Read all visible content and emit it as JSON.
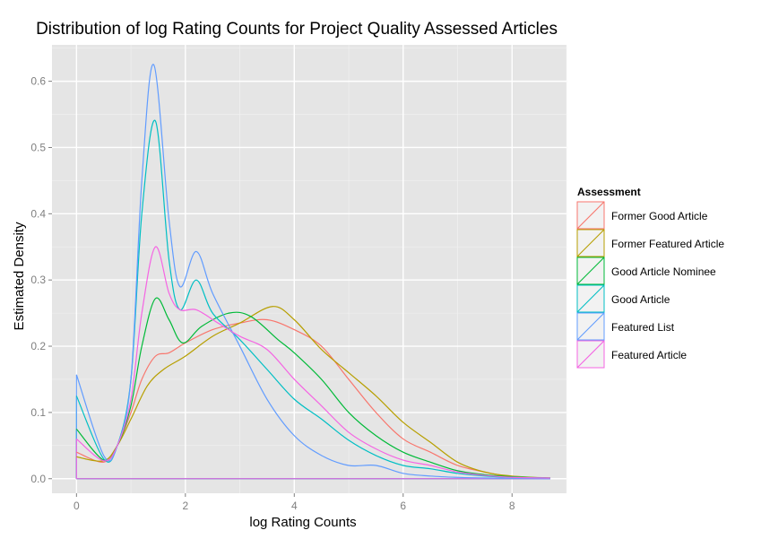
{
  "chart_data": {
    "type": "line",
    "title": "Distribution of log Rating Counts for Project Quality Assessed Articles",
    "xlabel": "log Rating Counts",
    "ylabel": "Estimated Density",
    "xlim": [
      -0.45,
      9.0
    ],
    "ylim": [
      -0.022,
      0.655
    ],
    "x_ticks": [
      0,
      2,
      4,
      6,
      8
    ],
    "y_ticks": [
      0.0,
      0.1,
      0.2,
      0.3,
      0.4,
      0.5,
      0.6
    ],
    "x_tick_labels": [
      "0",
      "2",
      "4",
      "6",
      "8"
    ],
    "y_tick_labels": [
      "0.0",
      "0.1",
      "0.2",
      "0.3",
      "0.4",
      "0.5",
      "0.6"
    ],
    "grid": true,
    "legend": {
      "title": "Assessment",
      "position": "right"
    },
    "x_range": [
      0,
      8.7
    ],
    "series": [
      {
        "name": "Former Good Article",
        "color": "#F8766D",
        "points": [
          [
            0,
            0.04
          ],
          [
            0.5,
            0.025
          ],
          [
            0.75,
            0.05
          ],
          [
            1.0,
            0.1
          ],
          [
            1.2,
            0.15
          ],
          [
            1.45,
            0.185
          ],
          [
            1.7,
            0.19
          ],
          [
            2.0,
            0.205
          ],
          [
            2.5,
            0.225
          ],
          [
            3.0,
            0.235
          ],
          [
            3.5,
            0.24
          ],
          [
            4.0,
            0.225
          ],
          [
            4.5,
            0.2
          ],
          [
            5.0,
            0.15
          ],
          [
            5.5,
            0.1
          ],
          [
            6.0,
            0.06
          ],
          [
            6.5,
            0.04
          ],
          [
            7.0,
            0.02
          ],
          [
            7.5,
            0.01
          ],
          [
            8.0,
            0.003
          ],
          [
            8.7,
            0.001
          ]
        ]
      },
      {
        "name": "Former Featured Article",
        "color": "#B79F00",
        "points": [
          [
            0,
            0.033
          ],
          [
            0.5,
            0.027
          ],
          [
            0.75,
            0.05
          ],
          [
            1.0,
            0.09
          ],
          [
            1.3,
            0.14
          ],
          [
            1.6,
            0.165
          ],
          [
            2.0,
            0.185
          ],
          [
            2.5,
            0.215
          ],
          [
            3.0,
            0.235
          ],
          [
            3.6,
            0.26
          ],
          [
            4.0,
            0.24
          ],
          [
            4.5,
            0.195
          ],
          [
            5.0,
            0.16
          ],
          [
            5.5,
            0.125
          ],
          [
            6.0,
            0.085
          ],
          [
            6.5,
            0.055
          ],
          [
            7.0,
            0.025
          ],
          [
            7.5,
            0.01
          ],
          [
            8.0,
            0.004
          ],
          [
            8.7,
            0.001
          ]
        ]
      },
      {
        "name": "Good Article Nominee",
        "color": "#00BA38",
        "points": [
          [
            0,
            0.075
          ],
          [
            0.5,
            0.028
          ],
          [
            0.75,
            0.05
          ],
          [
            1.0,
            0.11
          ],
          [
            1.2,
            0.2
          ],
          [
            1.45,
            0.272
          ],
          [
            1.7,
            0.24
          ],
          [
            1.95,
            0.205
          ],
          [
            2.3,
            0.23
          ],
          [
            2.8,
            0.25
          ],
          [
            3.2,
            0.245
          ],
          [
            3.7,
            0.21
          ],
          [
            4.0,
            0.19
          ],
          [
            4.5,
            0.15
          ],
          [
            5.0,
            0.1
          ],
          [
            5.5,
            0.065
          ],
          [
            6.0,
            0.04
          ],
          [
            6.5,
            0.025
          ],
          [
            7.0,
            0.012
          ],
          [
            7.5,
            0.006
          ],
          [
            8.0,
            0.003
          ],
          [
            8.7,
            0.001
          ]
        ]
      },
      {
        "name": "Good Article",
        "color": "#00BFC4",
        "points": [
          [
            0,
            0.125
          ],
          [
            0.5,
            0.03
          ],
          [
            0.75,
            0.05
          ],
          [
            1.0,
            0.15
          ],
          [
            1.2,
            0.4
          ],
          [
            1.45,
            0.54
          ],
          [
            1.7,
            0.33
          ],
          [
            1.9,
            0.255
          ],
          [
            2.2,
            0.3
          ],
          [
            2.5,
            0.25
          ],
          [
            3.0,
            0.21
          ],
          [
            3.5,
            0.165
          ],
          [
            4.0,
            0.12
          ],
          [
            4.5,
            0.09
          ],
          [
            5.0,
            0.058
          ],
          [
            5.5,
            0.035
          ],
          [
            6.0,
            0.02
          ],
          [
            6.5,
            0.015
          ],
          [
            7.0,
            0.008
          ],
          [
            7.5,
            0.004
          ],
          [
            8.0,
            0.002
          ],
          [
            8.7,
            0.001
          ]
        ]
      },
      {
        "name": "Featured List",
        "color": "#619CFF",
        "points": [
          [
            0,
            0.157
          ],
          [
            0.5,
            0.035
          ],
          [
            0.75,
            0.05
          ],
          [
            1.0,
            0.15
          ],
          [
            1.2,
            0.45
          ],
          [
            1.42,
            0.625
          ],
          [
            1.7,
            0.39
          ],
          [
            1.9,
            0.29
          ],
          [
            2.2,
            0.343
          ],
          [
            2.5,
            0.28
          ],
          [
            3.0,
            0.2
          ],
          [
            3.5,
            0.12
          ],
          [
            4.0,
            0.065
          ],
          [
            4.5,
            0.035
          ],
          [
            5.0,
            0.02
          ],
          [
            5.5,
            0.02
          ],
          [
            6.0,
            0.008
          ],
          [
            6.5,
            0.004
          ],
          [
            7.0,
            0.002
          ],
          [
            7.5,
            0.001
          ],
          [
            8.7,
            0.0
          ]
        ]
      },
      {
        "name": "Featured Article",
        "color": "#F564E3",
        "points": [
          [
            0,
            0.06
          ],
          [
            0.5,
            0.027
          ],
          [
            0.75,
            0.05
          ],
          [
            1.0,
            0.12
          ],
          [
            1.2,
            0.25
          ],
          [
            1.45,
            0.35
          ],
          [
            1.7,
            0.28
          ],
          [
            1.9,
            0.255
          ],
          [
            2.2,
            0.255
          ],
          [
            2.6,
            0.235
          ],
          [
            3.0,
            0.215
          ],
          [
            3.5,
            0.195
          ],
          [
            4.0,
            0.15
          ],
          [
            4.5,
            0.11
          ],
          [
            5.0,
            0.07
          ],
          [
            5.5,
            0.045
          ],
          [
            6.0,
            0.028
          ],
          [
            6.5,
            0.02
          ],
          [
            7.0,
            0.01
          ],
          [
            7.5,
            0.005
          ],
          [
            8.0,
            0.002
          ],
          [
            8.7,
            0.001
          ]
        ]
      }
    ]
  }
}
